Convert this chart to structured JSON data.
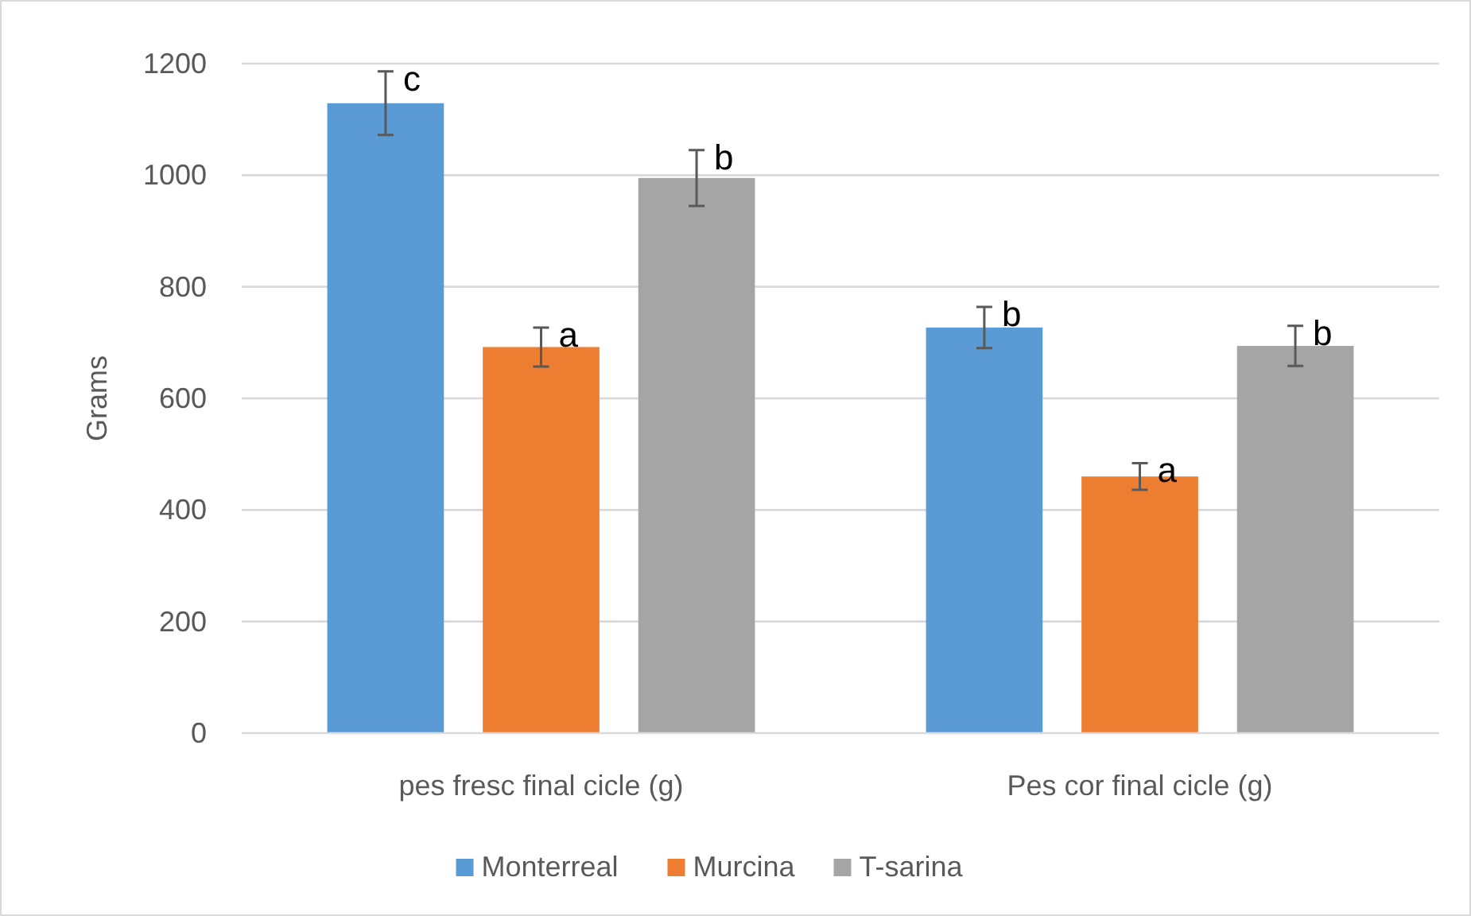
{
  "chart_data": {
    "type": "bar",
    "ylabel": "Grams",
    "categories": [
      "pes fresc final cicle (g)",
      "Pes cor final cicle (g)"
    ],
    "series": [
      {
        "name": "Monterreal",
        "color": "#5b9bd5",
        "values": [
          1129,
          727
        ],
        "errors": [
          57,
          37
        ]
      },
      {
        "name": "Murcina",
        "color": "#ed7d31",
        "values": [
          692,
          460
        ],
        "errors": [
          35,
          24
        ]
      },
      {
        "name": "T-sarina",
        "color": "#a5a5a5",
        "values": [
          995,
          694
        ],
        "errors": [
          50,
          36
        ]
      }
    ],
    "ylim": [
      0,
      1200
    ],
    "yticks": [
      0,
      200,
      400,
      600,
      800,
      1000,
      1200
    ],
    "grid": "y",
    "legend": "bottom",
    "annotations": [
      "c",
      "a",
      "b",
      "b",
      "a",
      "b"
    ]
  }
}
